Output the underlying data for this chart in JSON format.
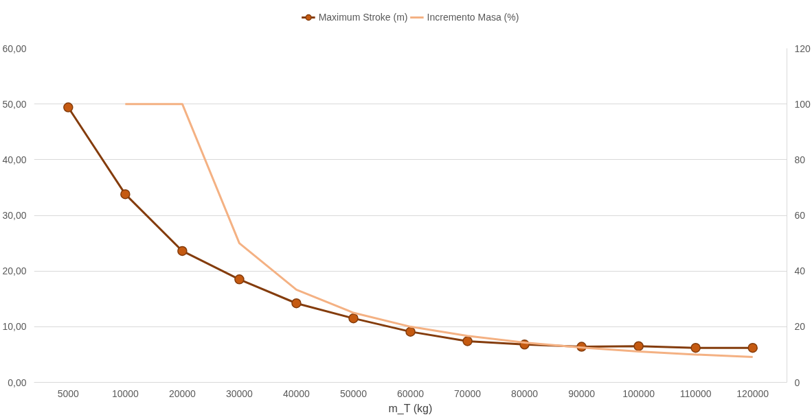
{
  "chart_data": {
    "type": "line",
    "xlabel": "m_T (kg)",
    "categories": [
      "5000",
      "10000",
      "20000",
      "30000",
      "40000",
      "50000",
      "60000",
      "70000",
      "80000",
      "90000",
      "100000",
      "110000",
      "120000"
    ],
    "series": [
      {
        "name": "Maximum Stroke (m)",
        "color": "#843c0c",
        "marker": "circle",
        "values": [
          49.4,
          33.8,
          23.6,
          18.5,
          14.2,
          11.5,
          9.1,
          7.4,
          6.8,
          6.4,
          6.5,
          6.2,
          6.2
        ]
      },
      {
        "name": "Incremento Masa (%)",
        "color": "#f4b183",
        "marker": "none",
        "axis": "y2",
        "values": [
          null,
          100,
          100,
          50,
          33.3,
          25,
          20,
          16.7,
          14.3,
          12.5,
          11.1,
          10,
          9.1
        ]
      }
    ],
    "ylim": [
      0,
      60
    ],
    "yticks": [
      {
        "value": 0,
        "label": "0,00"
      },
      {
        "value": 10,
        "label": "10,00"
      },
      {
        "value": 20,
        "label": "20,00"
      },
      {
        "value": 30,
        "label": "30,00"
      },
      {
        "value": 40,
        "label": "40,00"
      },
      {
        "value": 50,
        "label": "50,00"
      },
      {
        "value": 60,
        "label": "60,00"
      }
    ],
    "y2lim": [
      0,
      120
    ],
    "y2ticks": [
      0,
      20,
      40,
      60,
      80,
      100,
      120
    ],
    "grid": "y",
    "legend": "top"
  }
}
